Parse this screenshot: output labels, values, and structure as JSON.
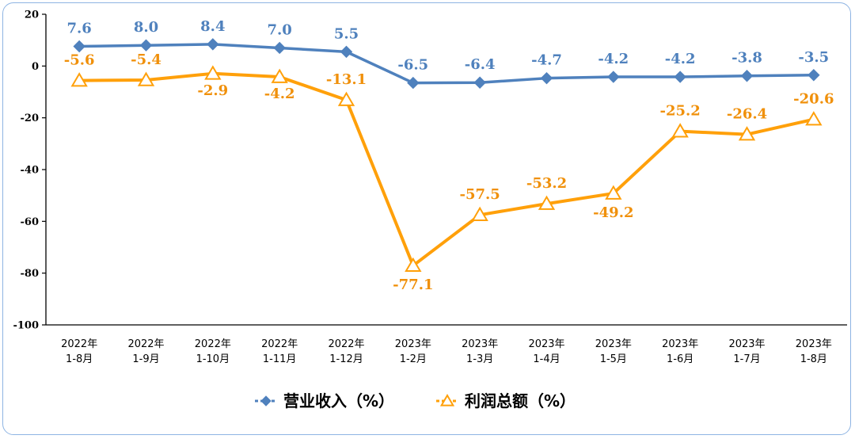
{
  "chart_data": {
    "type": "line",
    "categories": [
      [
        "2022年",
        "1-8月"
      ],
      [
        "2022年",
        "1-9月"
      ],
      [
        "2022年",
        "1-10月"
      ],
      [
        "2022年",
        "1-11月"
      ],
      [
        "2022年",
        "1-12月"
      ],
      [
        "2023年",
        "1-2月"
      ],
      [
        "2023年",
        "1-3月"
      ],
      [
        "2023年",
        "1-4月"
      ],
      [
        "2023年",
        "1-5月"
      ],
      [
        "2023年",
        "1-6月"
      ],
      [
        "2023年",
        "1-7月"
      ],
      [
        "2023年",
        "1-8月"
      ]
    ],
    "yticks": [
      20,
      0,
      -20,
      -40,
      -60,
      -80,
      -100
    ],
    "ylim": [
      -100,
      20
    ],
    "series": [
      {
        "name": "营业收入（%）",
        "color": "#4f81bd",
        "label_color": "#4f81bd",
        "marker": "diamond",
        "values": [
          7.6,
          8.0,
          8.4,
          7.0,
          5.5,
          -6.5,
          -6.4,
          -4.7,
          -4.2,
          -4.2,
          -3.8,
          -3.5
        ],
        "labels": [
          "7.6",
          "8.0",
          "8.4",
          "7.0",
          "5.5",
          "-6.5",
          "-6.4",
          "-4.7",
          "-4.2",
          "-4.2",
          "-3.8",
          "-3.5"
        ]
      },
      {
        "name": "利润总额（%）",
        "color": "#ffa00a",
        "label_color": "#f0900a",
        "marker": "triangle",
        "values": [
          -5.6,
          -5.4,
          -2.9,
          -4.2,
          -13.1,
          -77.1,
          -57.5,
          -53.2,
          -49.2,
          -25.2,
          -26.4,
          -20.6
        ],
        "labels": [
          "-5.6",
          "-5.4",
          "-2.9",
          "-4.2",
          "-13.1",
          "-77.1",
          "-57.5",
          "-53.2",
          "-49.2",
          "-25.2",
          "-26.4",
          "-20.6"
        ]
      }
    ],
    "legend_position": "bottom-center",
    "grid": false
  }
}
